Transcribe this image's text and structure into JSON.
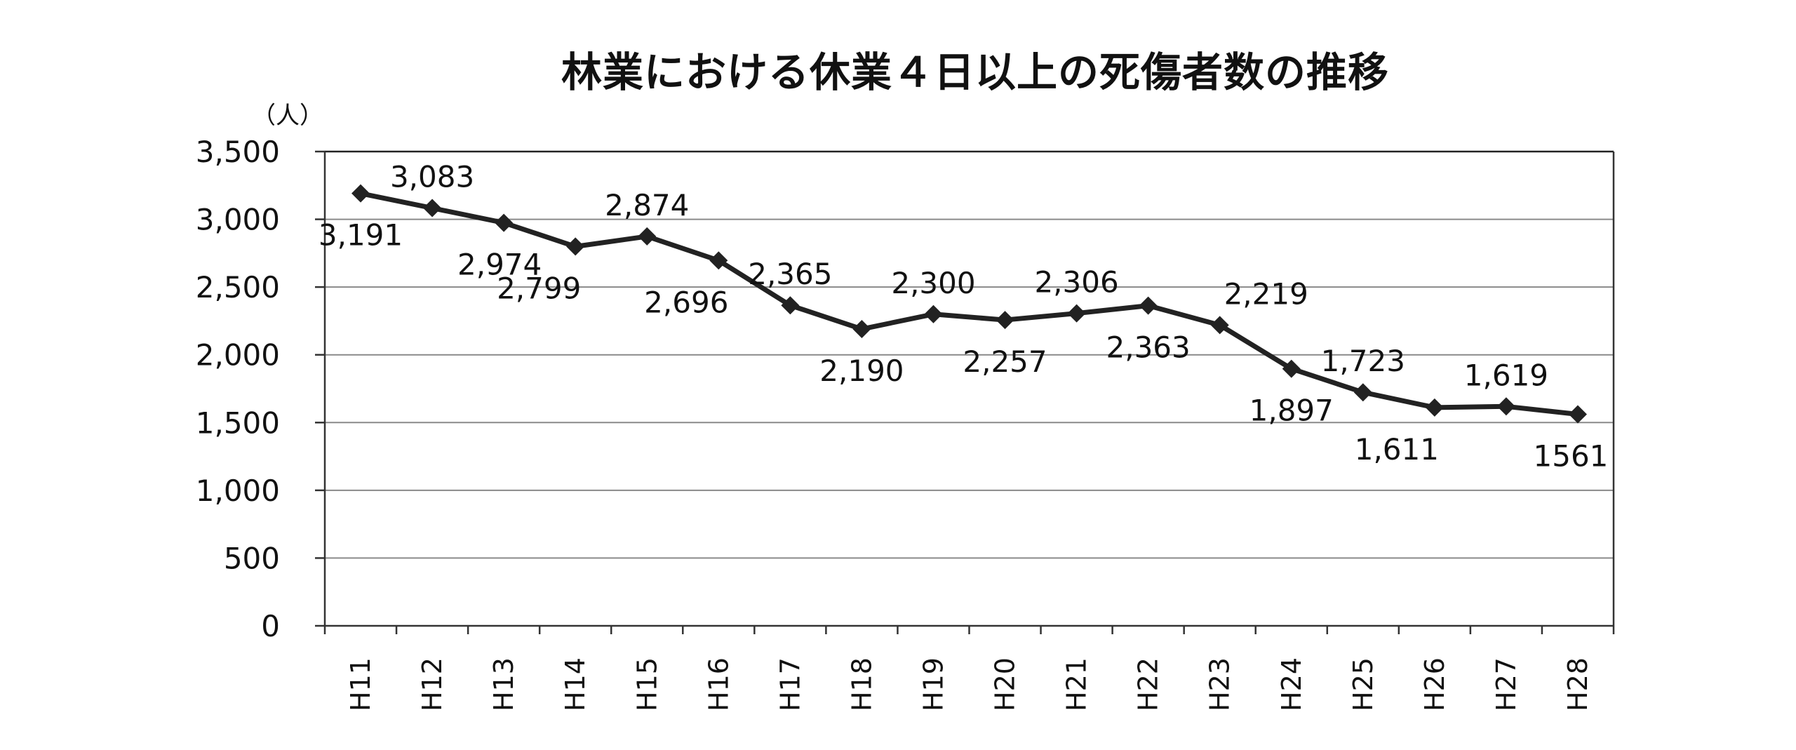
{
  "chart_data": {
    "type": "line",
    "title": "林業における休業４日以上の死傷者数の推移",
    "y_unit": "（人）",
    "xlabel": "",
    "ylabel": "",
    "ylim": [
      0,
      3500
    ],
    "y_ticks": [
      0,
      500,
      1000,
      1500,
      2000,
      2500,
      3000,
      3500
    ],
    "y_tick_labels": [
      "0",
      "500",
      "1,000",
      "1,500",
      "2,000",
      "2,500",
      "3,000",
      "3,500"
    ],
    "grid": true,
    "legend": "none",
    "categories": [
      "H11",
      "H12",
      "H13",
      "H14",
      "H15",
      "H16",
      "H17",
      "H18",
      "H19",
      "H20",
      "H21",
      "H22",
      "H23",
      "H24",
      "H25",
      "H26",
      "H27",
      "H28"
    ],
    "series": [
      {
        "values": [
          3191,
          3083,
          2974,
          2799,
          2874,
          2696,
          2365,
          2190,
          2300,
          2257,
          2306,
          2363,
          2219,
          1897,
          1723,
          1611,
          1619,
          1561
        ],
        "labels": [
          "3,191",
          "3,083",
          "2,974",
          "2,799",
          "2,874",
          "2,696",
          "2,365",
          "2,190",
          "2,300",
          "2,257",
          "2,306",
          "2,363",
          "2,219",
          "1,897",
          "1,723",
          "1,611",
          "1,619",
          "1561"
        ],
        "color": "#222222",
        "marker": "diamond"
      }
    ]
  }
}
